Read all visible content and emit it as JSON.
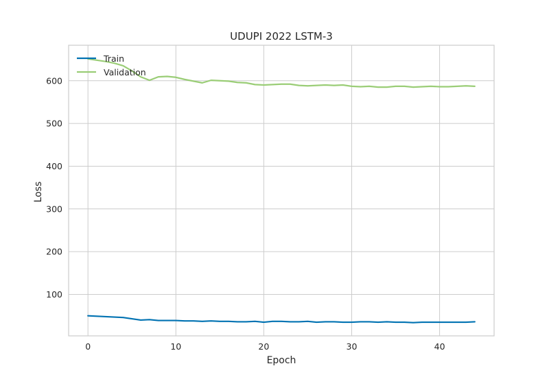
{
  "chart_data": {
    "type": "line",
    "title": "UDUPI 2022 LSTM-3",
    "xlabel": "Epoch",
    "ylabel": "Loss",
    "xlim": [
      -2.2,
      46.2
    ],
    "ylim": [
      3,
      683
    ],
    "xticks": [
      0,
      10,
      20,
      30,
      40
    ],
    "yticks": [
      100,
      200,
      300,
      400,
      500,
      600
    ],
    "grid": true,
    "legend_position": "top-left",
    "series": [
      {
        "name": "Train",
        "color": "#0072b2",
        "x": [
          0,
          1,
          2,
          3,
          4,
          5,
          6,
          7,
          8,
          9,
          10,
          11,
          12,
          13,
          14,
          15,
          16,
          17,
          18,
          19,
          20,
          21,
          22,
          23,
          24,
          25,
          26,
          27,
          28,
          29,
          30,
          31,
          32,
          33,
          34,
          35,
          36,
          37,
          38,
          39,
          40,
          41,
          42,
          43,
          44
        ],
        "values": [
          50,
          49,
          48,
          47,
          46,
          43,
          40,
          41,
          39,
          39,
          39,
          38,
          38,
          37,
          38,
          37,
          37,
          36,
          36,
          37,
          35,
          37,
          37,
          36,
          36,
          37,
          35,
          36,
          36,
          35,
          35,
          36,
          36,
          35,
          36,
          35,
          35,
          34,
          35,
          35,
          35,
          35,
          35,
          35,
          36
        ]
      },
      {
        "name": "Validation",
        "color": "#9acd76",
        "x": [
          0,
          1,
          2,
          3,
          4,
          5,
          6,
          7,
          8,
          9,
          10,
          11,
          12,
          13,
          14,
          15,
          16,
          17,
          18,
          19,
          20,
          21,
          22,
          23,
          24,
          25,
          26,
          27,
          28,
          29,
          30,
          31,
          32,
          33,
          34,
          35,
          36,
          37,
          38,
          39,
          40,
          41,
          42,
          43,
          44
        ],
        "values": [
          651,
          648,
          645,
          641,
          635,
          623,
          609,
          601,
          609,
          610,
          608,
          603,
          599,
          595,
          601,
          600,
          599,
          596,
          595,
          591,
          590,
          591,
          592,
          592,
          589,
          588,
          589,
          590,
          589,
          590,
          587,
          586,
          587,
          585,
          585,
          587,
          587,
          585,
          586,
          587,
          586,
          586,
          587,
          588,
          587
        ]
      }
    ]
  }
}
